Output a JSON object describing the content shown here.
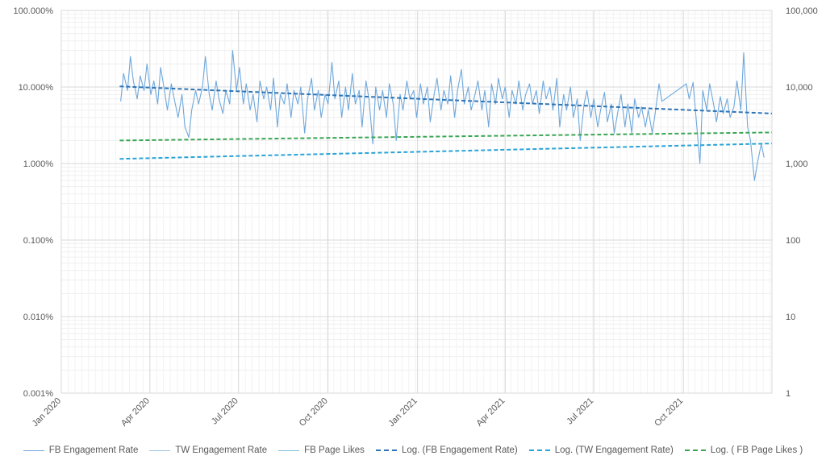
{
  "chart_data": {
    "type": "line",
    "title": "",
    "xlabel": "",
    "y_left_label": "",
    "y_right_label": "",
    "x_start": "2020-01-01",
    "x_end": "2021-12-31",
    "x_tick_labels": [
      "Jan 2020",
      "Apr 2020",
      "Jul 2020",
      "Oct 2020",
      "Jan 2021",
      "Apr 2021",
      "Jul 2021",
      "Oct 2021"
    ],
    "x_tick_dates": [
      "2020-01-01",
      "2020-04-01",
      "2020-07-01",
      "2020-10-01",
      "2021-01-01",
      "2021-04-01",
      "2021-07-01",
      "2021-10-01"
    ],
    "y_left_scale": "log",
    "y_left_ticks": [
      "100.000%",
      "10.000%",
      "1.000%",
      "0.100%",
      "0.010%",
      "0.001%"
    ],
    "y_left_tick_values": [
      1.0,
      0.1,
      0.01,
      0.001,
      0.0001,
      1e-05
    ],
    "y_left_range": [
      1e-05,
      1.0
    ],
    "y_right_scale": "log",
    "y_right_ticks": [
      "100,000",
      "10,000",
      "1,000",
      "100",
      "10",
      "1"
    ],
    "y_right_tick_values": [
      100000,
      10000,
      1000,
      100,
      10,
      1
    ],
    "y_right_range": [
      1,
      100000
    ],
    "grid": true,
    "legend_position": "bottom",
    "series": [
      {
        "name": "FB Engagement Rate",
        "axis": "left",
        "style": "solid",
        "color": "#6fa8dc",
        "points": [
          [
            "2020-03-02",
            0.065
          ],
          [
            "2020-03-05",
            0.15
          ],
          [
            "2020-03-09",
            0.09
          ],
          [
            "2020-03-12",
            0.25
          ],
          [
            "2020-03-15",
            0.12
          ],
          [
            "2020-03-19",
            0.07
          ],
          [
            "2020-03-22",
            0.14
          ],
          [
            "2020-03-26",
            0.09
          ],
          [
            "2020-03-29",
            0.2
          ],
          [
            "2020-04-02",
            0.08
          ],
          [
            "2020-04-05",
            0.12
          ],
          [
            "2020-04-09",
            0.06
          ],
          [
            "2020-04-12",
            0.18
          ],
          [
            "2020-04-16",
            0.09
          ],
          [
            "2020-04-19",
            0.05
          ],
          [
            "2020-04-23",
            0.11
          ],
          [
            "2020-04-26",
            0.07
          ],
          [
            "2020-04-30",
            0.04
          ],
          [
            "2020-05-04",
            0.08
          ],
          [
            "2020-05-07",
            0.03
          ],
          [
            "2020-05-11",
            0.022
          ],
          [
            "2020-05-14",
            0.05
          ],
          [
            "2020-05-18",
            0.09
          ],
          [
            "2020-05-21",
            0.06
          ],
          [
            "2020-05-25",
            0.1
          ],
          [
            "2020-05-28",
            0.25
          ],
          [
            "2020-06-01",
            0.08
          ],
          [
            "2020-06-04",
            0.05
          ],
          [
            "2020-06-08",
            0.12
          ],
          [
            "2020-06-11",
            0.07
          ],
          [
            "2020-06-15",
            0.045
          ],
          [
            "2020-06-18",
            0.09
          ],
          [
            "2020-06-22",
            0.06
          ],
          [
            "2020-06-25",
            0.3
          ],
          [
            "2020-06-29",
            0.09
          ],
          [
            "2020-07-02",
            0.18
          ],
          [
            "2020-07-06",
            0.06
          ],
          [
            "2020-07-09",
            0.11
          ],
          [
            "2020-07-13",
            0.05
          ],
          [
            "2020-07-16",
            0.08
          ],
          [
            "2020-07-20",
            0.035
          ],
          [
            "2020-07-23",
            0.12
          ],
          [
            "2020-07-27",
            0.07
          ],
          [
            "2020-07-30",
            0.1
          ],
          [
            "2020-08-03",
            0.05
          ],
          [
            "2020-08-06",
            0.13
          ],
          [
            "2020-08-10",
            0.03
          ],
          [
            "2020-08-13",
            0.08
          ],
          [
            "2020-08-17",
            0.06
          ],
          [
            "2020-08-20",
            0.11
          ],
          [
            "2020-08-24",
            0.04
          ],
          [
            "2020-08-27",
            0.09
          ],
          [
            "2020-08-31",
            0.06
          ],
          [
            "2020-09-03",
            0.1
          ],
          [
            "2020-09-07",
            0.025
          ],
          [
            "2020-09-10",
            0.07
          ],
          [
            "2020-09-14",
            0.13
          ],
          [
            "2020-09-17",
            0.05
          ],
          [
            "2020-09-21",
            0.09
          ],
          [
            "2020-09-24",
            0.04
          ],
          [
            "2020-09-28",
            0.08
          ],
          [
            "2020-10-01",
            0.06
          ],
          [
            "2020-10-05",
            0.21
          ],
          [
            "2020-10-08",
            0.07
          ],
          [
            "2020-10-12",
            0.12
          ],
          [
            "2020-10-15",
            0.04
          ],
          [
            "2020-10-19",
            0.1
          ],
          [
            "2020-10-22",
            0.05
          ],
          [
            "2020-10-26",
            0.15
          ],
          [
            "2020-10-29",
            0.06
          ],
          [
            "2020-11-02",
            0.09
          ],
          [
            "2020-11-05",
            0.03
          ],
          [
            "2020-11-09",
            0.12
          ],
          [
            "2020-11-12",
            0.07
          ],
          [
            "2020-11-16",
            0.018
          ],
          [
            "2020-11-19",
            0.1
          ],
          [
            "2020-11-23",
            0.05
          ],
          [
            "2020-11-26",
            0.09
          ],
          [
            "2020-11-30",
            0.04
          ],
          [
            "2020-12-03",
            0.11
          ],
          [
            "2020-12-07",
            0.06
          ],
          [
            "2020-12-10",
            0.02
          ],
          [
            "2020-12-14",
            0.08
          ],
          [
            "2020-12-17",
            0.05
          ],
          [
            "2020-12-21",
            0.12
          ],
          [
            "2020-12-24",
            0.07
          ],
          [
            "2020-12-28",
            0.09
          ],
          [
            "2020-12-31",
            0.04
          ],
          [
            "2021-01-04",
            0.11
          ],
          [
            "2021-01-07",
            0.06
          ],
          [
            "2021-01-11",
            0.1
          ],
          [
            "2021-01-14",
            0.035
          ],
          [
            "2021-01-18",
            0.08
          ],
          [
            "2021-01-21",
            0.13
          ],
          [
            "2021-01-25",
            0.05
          ],
          [
            "2021-01-28",
            0.09
          ],
          [
            "2021-02-01",
            0.06
          ],
          [
            "2021-02-04",
            0.14
          ],
          [
            "2021-02-08",
            0.04
          ],
          [
            "2021-02-11",
            0.09
          ],
          [
            "2021-02-15",
            0.17
          ],
          [
            "2021-02-18",
            0.06
          ],
          [
            "2021-02-22",
            0.1
          ],
          [
            "2021-02-25",
            0.05
          ],
          [
            "2021-03-01",
            0.08
          ],
          [
            "2021-03-04",
            0.12
          ],
          [
            "2021-03-08",
            0.05
          ],
          [
            "2021-03-11",
            0.09
          ],
          [
            "2021-03-15",
            0.03
          ],
          [
            "2021-03-18",
            0.11
          ],
          [
            "2021-03-22",
            0.06
          ],
          [
            "2021-03-25",
            0.13
          ],
          [
            "2021-03-29",
            0.07
          ],
          [
            "2021-04-01",
            0.1
          ],
          [
            "2021-04-05",
            0.04
          ],
          [
            "2021-04-08",
            0.09
          ],
          [
            "2021-04-12",
            0.06
          ],
          [
            "2021-04-15",
            0.12
          ],
          [
            "2021-04-19",
            0.05
          ],
          [
            "2021-04-22",
            0.08
          ],
          [
            "2021-04-26",
            0.11
          ],
          [
            "2021-04-29",
            0.06
          ],
          [
            "2021-05-03",
            0.09
          ],
          [
            "2021-05-06",
            0.045
          ],
          [
            "2021-05-10",
            0.12
          ],
          [
            "2021-05-13",
            0.07
          ],
          [
            "2021-05-17",
            0.1
          ],
          [
            "2021-05-20",
            0.05
          ],
          [
            "2021-05-24",
            0.13
          ],
          [
            "2021-05-27",
            0.03
          ],
          [
            "2021-05-31",
            0.08
          ],
          [
            "2021-06-03",
            0.05
          ],
          [
            "2021-06-07",
            0.1
          ],
          [
            "2021-06-10",
            0.04
          ],
          [
            "2021-06-14",
            0.07
          ],
          [
            "2021-06-17",
            0.02
          ],
          [
            "2021-06-21",
            0.06
          ],
          [
            "2021-06-24",
            0.09
          ],
          [
            "2021-06-28",
            0.04
          ],
          [
            "2021-07-01",
            0.07
          ],
          [
            "2021-07-05",
            0.03
          ],
          [
            "2021-07-08",
            0.05
          ],
          [
            "2021-07-12",
            0.085
          ],
          [
            "2021-07-15",
            0.035
          ],
          [
            "2021-07-19",
            0.06
          ],
          [
            "2021-07-22",
            0.025
          ],
          [
            "2021-07-26",
            0.05
          ],
          [
            "2021-07-29",
            0.08
          ],
          [
            "2021-08-02",
            0.03
          ],
          [
            "2021-08-05",
            0.06
          ],
          [
            "2021-08-09",
            0.025
          ],
          [
            "2021-08-12",
            0.07
          ],
          [
            "2021-08-16",
            0.04
          ],
          [
            "2021-08-19",
            0.055
          ],
          [
            "2021-08-23",
            0.03
          ],
          [
            "2021-08-26",
            0.05
          ],
          [
            "2021-08-30",
            0.025
          ],
          [
            "2021-09-02",
            0.045
          ],
          [
            "2021-09-06",
            0.11
          ],
          [
            "2021-09-09",
            0.065
          ],
          [
            "2021-10-04",
            0.11
          ],
          [
            "2021-10-07",
            0.07
          ],
          [
            "2021-10-11",
            0.115
          ],
          [
            "2021-10-14",
            0.04
          ],
          [
            "2021-10-18",
            0.01
          ],
          [
            "2021-10-21",
            0.09
          ],
          [
            "2021-10-25",
            0.05
          ],
          [
            "2021-10-28",
            0.11
          ],
          [
            "2021-11-01",
            0.06
          ],
          [
            "2021-11-04",
            0.035
          ],
          [
            "2021-11-08",
            0.075
          ],
          [
            "2021-11-11",
            0.045
          ],
          [
            "2021-11-15",
            0.07
          ],
          [
            "2021-11-18",
            0.04
          ],
          [
            "2021-11-22",
            0.055
          ],
          [
            "2021-11-25",
            0.12
          ],
          [
            "2021-11-29",
            0.05
          ],
          [
            "2021-12-02",
            0.28
          ],
          [
            "2021-12-06",
            0.03
          ],
          [
            "2021-12-09",
            0.02
          ],
          [
            "2021-12-13",
            0.006
          ],
          [
            "2021-12-16",
            0.01
          ],
          [
            "2021-12-20",
            0.018
          ],
          [
            "2021-12-23",
            0.012
          ]
        ]
      },
      {
        "name": "TW Engagement Rate",
        "axis": "left",
        "style": "solid",
        "color": "#9dc3e6",
        "points": []
      },
      {
        "name": "FB Page Likes",
        "axis": "right",
        "style": "solid",
        "color": "#7fbfdf",
        "points": []
      },
      {
        "name": "Log. (FB Engagement Rate)",
        "axis": "left",
        "style": "dashed",
        "color": "#2e75b6",
        "points": [
          [
            "2020-03-01",
            0.102
          ],
          [
            "2021-12-31",
            0.045
          ]
        ]
      },
      {
        "name": "Log. (TW Engagement Rate)",
        "axis": "left",
        "style": "dashed",
        "color": "#29a3d6",
        "points": [
          [
            "2020-03-01",
            0.0115
          ],
          [
            "2021-12-31",
            0.0183
          ]
        ]
      },
      {
        "name": "Log. ( FB Page Likes )",
        "axis": "left",
        "style": "dashed",
        "color": "#3aa655",
        "points": [
          [
            "2020-03-01",
            0.02
          ],
          [
            "2021-12-31",
            0.0255
          ]
        ]
      }
    ]
  }
}
